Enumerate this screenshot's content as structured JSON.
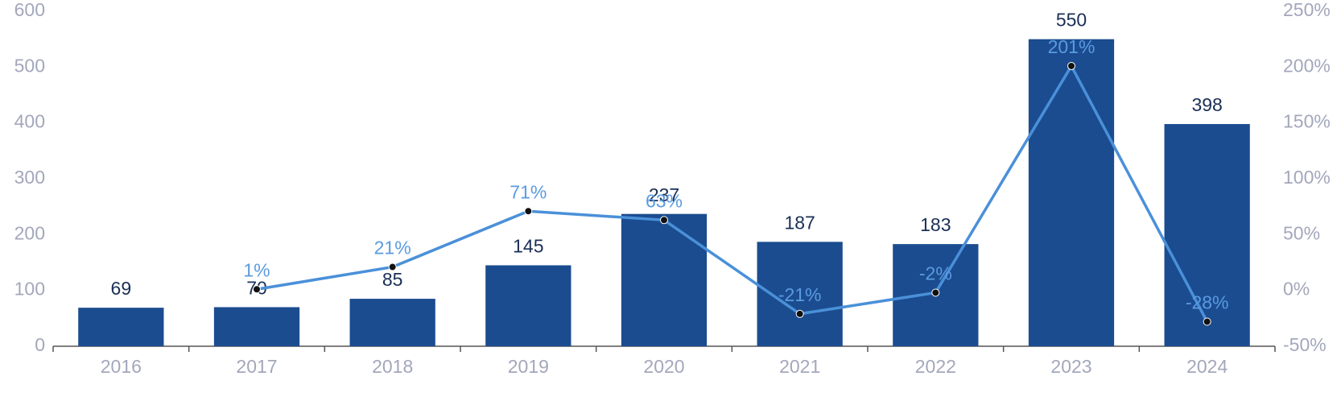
{
  "chart_data": {
    "type": "bar-line",
    "categories": [
      "2016",
      "2017",
      "2018",
      "2019",
      "2020",
      "2021",
      "2022",
      "2023",
      "2024"
    ],
    "series": [
      {
        "type": "bar",
        "color": "#1b4c8f",
        "values": [
          69,
          70,
          85,
          145,
          237,
          187,
          183,
          550,
          398
        ]
      },
      {
        "type": "line",
        "axis": "y2",
        "color": "#4a90d9",
        "values": [
          null,
          1,
          21,
          71,
          63,
          -21,
          -2,
          201,
          -28
        ],
        "value_labels": [
          null,
          "1%",
          "21%",
          "71%",
          "63%",
          "-21%",
          "-2%",
          "201%",
          "-28%"
        ]
      }
    ],
    "ylim": [
      0,
      600
    ],
    "yticks": [
      0,
      100,
      200,
      300,
      400,
      500,
      600
    ],
    "y2lim": [
      -50,
      250
    ],
    "y2ticks": [
      {
        "value": -50,
        "label": "-50%"
      },
      {
        "value": 0,
        "label": "0%"
      },
      {
        "value": 50,
        "label": "50%"
      },
      {
        "value": 100,
        "label": "100%"
      },
      {
        "value": 150,
        "label": "150%"
      },
      {
        "value": 200,
        "label": "200%"
      },
      {
        "value": 250,
        "label": "250%"
      }
    ]
  }
}
